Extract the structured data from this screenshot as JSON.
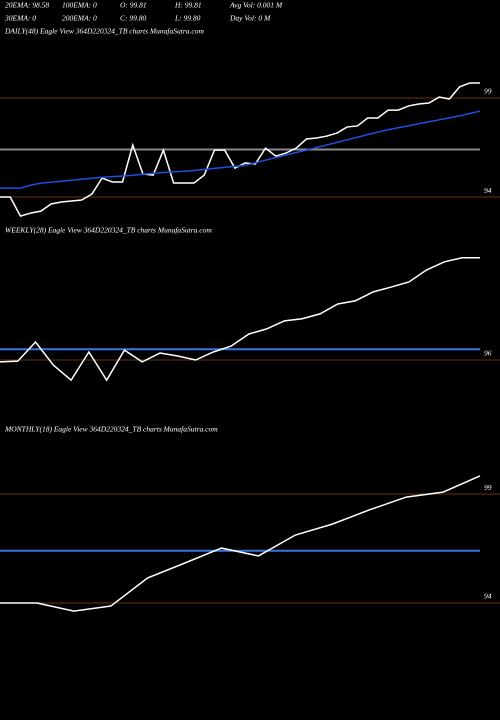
{
  "header": {
    "stats": [
      [
        "20EMA: 98.58",
        "100EMA: 0",
        "O: 99.81",
        "H: 99.81",
        "Avg Vol: 0.001 M"
      ],
      [
        "30EMA: 0",
        "200EMA: 0",
        "C: 99.80",
        "L: 99.80",
        "Day Vol: 0  M"
      ]
    ]
  },
  "chart_data": [
    {
      "type": "line",
      "title": "DAILY(48) Eagle  View  364D220324_TB charts MunafaSutra.com",
      "ylim": [
        92.74,
        101.93
      ],
      "yticks": [
        94,
        99
      ],
      "grid": true,
      "grid_color": "#6b3410",
      "hline": {
        "value": 96.4,
        "color": "#8a8a8a"
      },
      "series": [
        {
          "color": "#ffffff",
          "values": [
            94.0,
            94.0,
            93.04,
            93.19,
            93.29,
            93.65,
            93.75,
            93.8,
            93.85,
            94.15,
            94.96,
            94.76,
            94.76,
            96.63,
            95.16,
            95.11,
            96.37,
            94.71,
            94.71,
            94.71,
            95.11,
            96.37,
            96.37,
            95.46,
            95.72,
            95.67,
            96.47,
            96.07,
            96.22,
            96.47,
            96.93,
            96.98,
            97.08,
            97.23,
            97.54,
            97.59,
            97.99,
            97.99,
            98.39,
            98.39,
            98.6,
            98.7,
            98.75,
            99.05,
            98.95,
            99.56,
            99.76,
            99.76
          ]
        },
        {
          "color": "#1f4fe0",
          "values": [
            94.45,
            94.45,
            94.45,
            94.6,
            94.7,
            94.75,
            94.8,
            94.85,
            94.9,
            94.95,
            95.0,
            95.03,
            95.06,
            95.1,
            95.15,
            95.2,
            95.24,
            95.27,
            95.3,
            95.34,
            95.4,
            95.45,
            95.5,
            95.55,
            95.6,
            95.73,
            95.86,
            95.99,
            96.12,
            96.25,
            96.37,
            96.5,
            96.63,
            96.76,
            96.89,
            97.02,
            97.15,
            97.28,
            97.4,
            97.5,
            97.6,
            97.7,
            97.8,
            97.9,
            98.0,
            98.1,
            98.22,
            98.34
          ]
        }
      ]
    },
    {
      "type": "line",
      "title": "WEEKLY(28) Eagle  View  364D220324_TB charts MunafaSutra.com",
      "ylim": [
        94.51,
        100.66
      ],
      "yticks": [
        96
      ],
      "grid": true,
      "grid_color": "#6b3410",
      "hline": {
        "value": 96.4,
        "color": "#3f74e8"
      },
      "series": [
        {
          "color": "#ffffff",
          "values": [
            95.93,
            95.96,
            96.67,
            95.81,
            95.25,
            96.3,
            95.25,
            96.37,
            95.93,
            96.26,
            96.15,
            96.0,
            96.3,
            96.52,
            96.97,
            97.16,
            97.46,
            97.54,
            97.72,
            98.09,
            98.21,
            98.54,
            98.72,
            98.91,
            99.36,
            99.66,
            99.81,
            99.81
          ]
        }
      ]
    },
    {
      "type": "line",
      "title": "MONTHLY(18) Eagle  View  364D220324_TB charts MunafaSutra.com",
      "ylim": [
        88.86,
        101.71
      ],
      "yticks": [
        94,
        99
      ],
      "grid": true,
      "grid_color": "#6b3410",
      "hline": {
        "value": 96.4,
        "color": "#3f74e8"
      },
      "series": [
        {
          "color": "#ffffff",
          "values": [
            94.0,
            94.0,
            93.63,
            93.86,
            95.15,
            95.83,
            96.52,
            96.16,
            97.12,
            97.62,
            98.27,
            98.86,
            99.09,
            99.83
          ]
        }
      ]
    }
  ]
}
